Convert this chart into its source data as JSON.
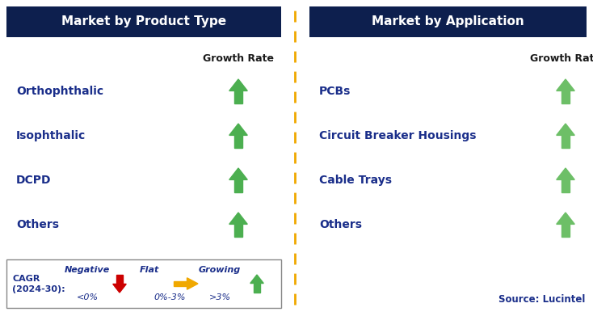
{
  "left_title": "Market by Product Type",
  "right_title": "Market by Application",
  "left_items": [
    "Orthophthalic",
    "Isophthalic",
    "DCPD",
    "Others"
  ],
  "right_items": [
    "PCBs",
    "Circuit Breaker Housings",
    "Cable Trays",
    "Others"
  ],
  "growth_rate_label": "Growth Rate",
  "header_bg_color": "#0d1f4e",
  "header_text_color": "#ffffff",
  "item_text_color": "#1a2e8a",
  "growth_rate_text_color": "#1a1a1a",
  "arrow_up_color_left": "#4caf50",
  "arrow_up_color_right": "#6dbf67",
  "arrow_down_color": "#cc0000",
  "arrow_flat_color": "#f0a800",
  "divider_color": "#f0a800",
  "bg_color": "#ffffff",
  "legend_border_color": "#888888",
  "legend_cagr_label": "CAGR",
  "legend_cagr_period": "(2024-30):",
  "legend_negative_label": "Negative",
  "legend_negative_value": "<0%",
  "legend_flat_label": "Flat",
  "legend_flat_value": "0%-3%",
  "legend_growing_label": "Growing",
  "legend_growing_value": ">3%",
  "source_text": "Source: Lucintel"
}
